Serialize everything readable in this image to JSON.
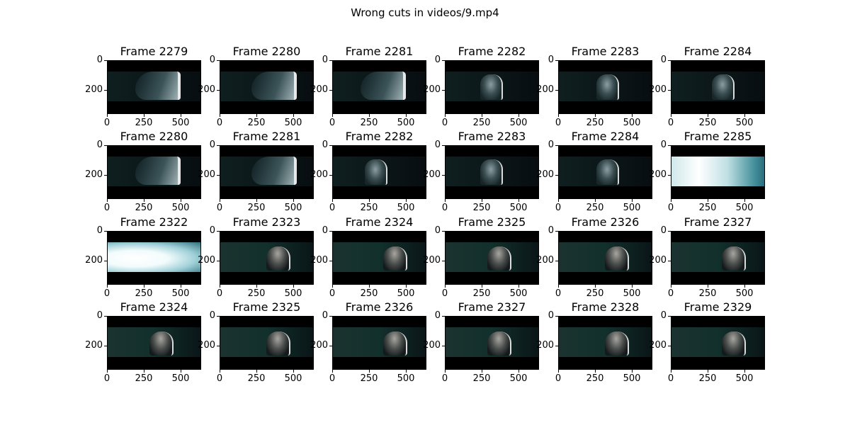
{
  "suptitle": "Wrong cuts in videos/9.mp4",
  "rows": [
    [
      "Frame 2279",
      "Frame 2280",
      "Frame 2281",
      "Frame 2282",
      "Frame 2283",
      "Frame 2284"
    ],
    [
      "Frame 2280",
      "Frame 2281",
      "Frame 2282",
      "Frame 2283",
      "Frame 2284",
      "Frame 2285"
    ],
    [
      "Frame 2322",
      "Frame 2323",
      "Frame 2324",
      "Frame 2325",
      "Frame 2326",
      "Frame 2327"
    ],
    [
      "Frame 2324",
      "Frame 2325",
      "Frame 2326",
      "Frame 2327",
      "Frame 2328",
      "Frame 2329"
    ]
  ],
  "frame_styles": [
    [
      "coat",
      "coat",
      "coat",
      "body",
      "body",
      "body"
    ],
    [
      "coat",
      "coat",
      "body",
      "body",
      "body",
      "flash"
    ],
    [
      "flash2",
      "face",
      "face",
      "face",
      "face",
      "face"
    ],
    [
      "face",
      "face",
      "face",
      "face",
      "face",
      "face"
    ]
  ],
  "y_ticks": [
    "0",
    "200"
  ],
  "x_ticks": [
    "0",
    "250",
    "500"
  ],
  "colors": {
    "background": "#ffffff",
    "letterbox": "#000000",
    "frame_teal": "#12302c"
  }
}
